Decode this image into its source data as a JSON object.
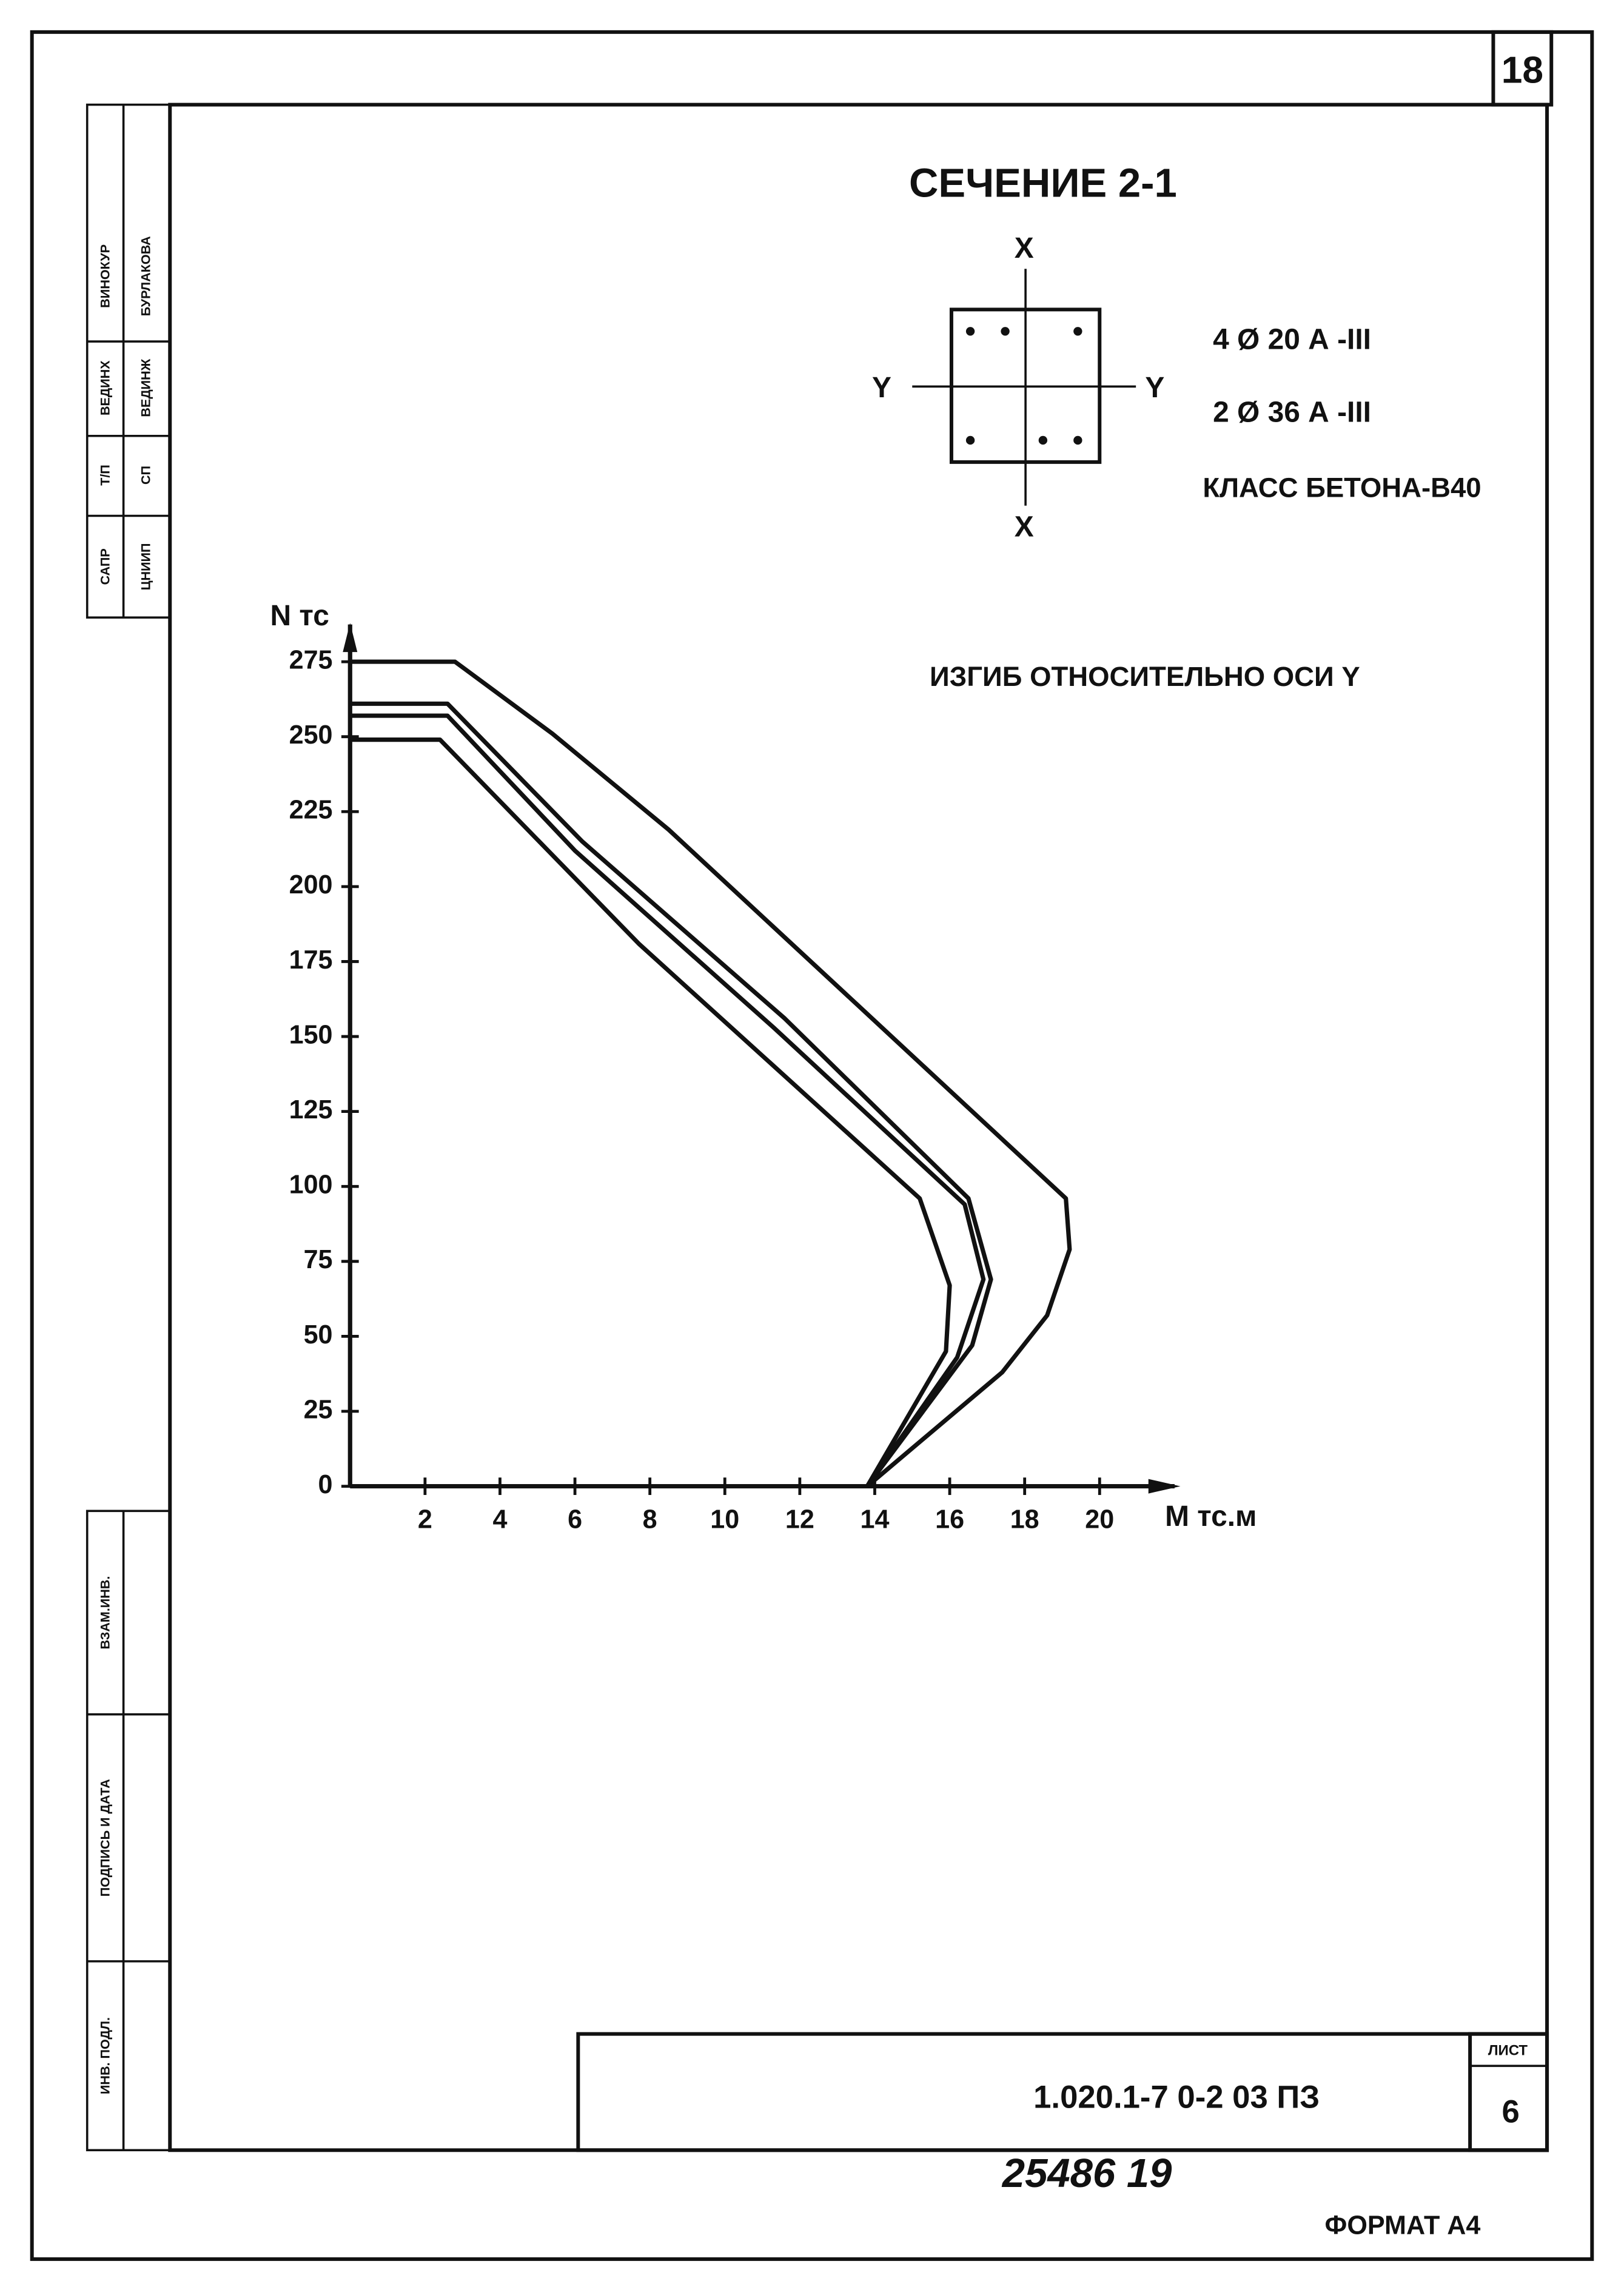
{
  "document": {
    "page_number": "18",
    "section_title": "СЕЧЕНИЕ 2-1",
    "axis_x_top": "X",
    "axis_x_bottom": "X",
    "axis_y_left": "Y",
    "axis_y_right": "Y",
    "rebar_1": "4 Ø 20 А -III",
    "rebar_2": "2 Ø 36 А -III",
    "concrete_class": "КЛАСС БЕТОНА-В40",
    "bending_note": "ИЗГИБ ОТНОСИТЕЛЬНО ОСИ Y",
    "sidebar_top": [
      [
        "САПР",
        "ЦНИИП"
      ],
      [
        "Т/П",
        "СП"
      ],
      [
        "ВЕДИНХ",
        "ВЕДИНЖ"
      ],
      [
        "ВИНОКУР",
        "БУРЛАКОВА"
      ]
    ],
    "sidebar_bottom": [
      "ВЗАМ.ИНВ.",
      "ПОДПИСЬ И ДАТА",
      "ИНВ. ПОДЛ."
    ],
    "stamp_code": "1.020.1-7   0-2   03 ПЗ",
    "sheet_label": "ЛИСТ",
    "sheet_number": "6",
    "handwritten": "25486   19",
    "format": "ФОРМАТ А4"
  },
  "chart_data": {
    "type": "line",
    "y_label": "N тс",
    "x_label": "M тс.м",
    "xlim": [
      0,
      22
    ],
    "ylim": [
      0,
      285
    ],
    "xticks": [
      2,
      4,
      6,
      8,
      10,
      12,
      14,
      16,
      18,
      20
    ],
    "yticks": [
      0,
      25,
      50,
      75,
      100,
      125,
      150,
      175,
      200,
      225,
      250,
      275
    ],
    "grid": false,
    "series": [
      {
        "color": "#111",
        "x": [
          0,
          2.8,
          5.4,
          8.5,
          13.5,
          19.1,
          19.2,
          18.6,
          17.4,
          13.8
        ],
        "values": [
          275,
          275,
          251,
          219,
          161,
          96,
          79,
          57,
          38,
          0
        ]
      },
      {
        "color": "#111",
        "x": [
          0,
          2.6,
          6.2,
          11.6,
          16.5,
          17.1,
          16.6,
          13.8
        ],
        "values": [
          261,
          261,
          215,
          156,
          96,
          69,
          47,
          0
        ]
      },
      {
        "color": "#111",
        "x": [
          0,
          2.6,
          6.0,
          11.3,
          16.4,
          16.9,
          16.2,
          13.8
        ],
        "values": [
          257,
          257,
          212,
          153,
          94,
          69,
          43,
          0
        ]
      },
      {
        "color": "#111",
        "x": [
          0,
          2.4,
          7.7,
          15.2,
          16.0,
          15.9,
          13.8
        ],
        "values": [
          249,
          249,
          181,
          96,
          67,
          45,
          0
        ]
      }
    ]
  }
}
